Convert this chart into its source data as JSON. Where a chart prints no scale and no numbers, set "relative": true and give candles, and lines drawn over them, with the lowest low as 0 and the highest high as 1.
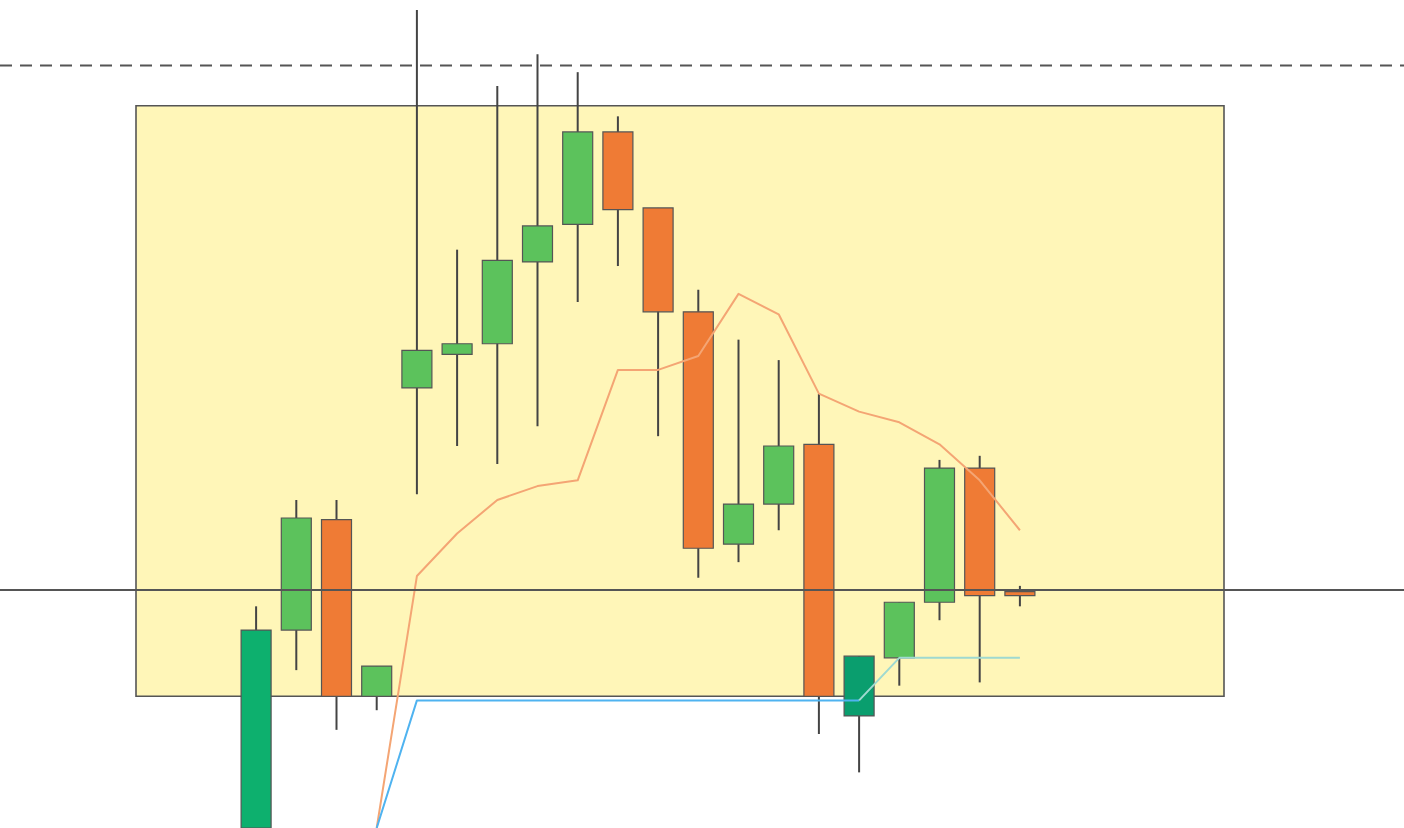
{
  "chart_data": {
    "type": "candlestick",
    "relative": true,
    "categories": [
      null,
      null,
      null,
      null,
      null,
      null,
      null,
      null,
      null,
      null,
      null,
      null,
      null,
      null,
      null,
      null,
      null,
      null,
      null,
      null
    ],
    "ohlc": [
      [
        0,
        0.271,
        0,
        0.242
      ],
      [
        0.242,
        0.401,
        0.193,
        0.379
      ],
      [
        0.377,
        0.401,
        0.12,
        0.161
      ],
      [
        0.161,
        0.198,
        0.144,
        0.198
      ],
      [
        0.538,
        1,
        0.408,
        0.584
      ],
      [
        0.579,
        0.707,
        0.467,
        0.592
      ],
      [
        0.592,
        0.907,
        0.445,
        0.694
      ],
      [
        0.692,
        0.946,
        0.491,
        0.736
      ],
      [
        0.738,
        0.924,
        0.643,
        0.851
      ],
      [
        0.851,
        0.87,
        0.687,
        0.756
      ],
      [
        0.758,
        0.758,
        0.479,
        0.631
      ],
      [
        0.631,
        0.658,
        0.306,
        0.342
      ],
      [
        0.347,
        0.597,
        0.325,
        0.396
      ],
      [
        0.396,
        0.572,
        0.364,
        0.467
      ],
      [
        0.469,
        0.531,
        0.115,
        0.161
      ],
      [
        0.137,
        0.21,
        0.068,
        0.21
      ],
      [
        0.208,
        0.276,
        0.174,
        0.276
      ],
      [
        0.276,
        0.45,
        0.254,
        0.44
      ],
      [
        0.44,
        0.455,
        0.178,
        0.284
      ],
      [
        0.289,
        0.296,
        0.271,
        0.284
      ]
    ],
    "colors": [
      "#0db06e",
      "#5cc25c",
      "#ef7b35",
      "#5cc25c",
      "#5cc25c",
      "#5cc25c",
      "#5cc25c",
      "#5cc25c",
      "#5cc25c",
      "#ef7b35",
      "#ef7b35",
      "#ef7b35",
      "#5cc25c",
      "#5cc25c",
      "#ef7b35",
      "#0a9e6e",
      "#5cc25c",
      "#5cc25c",
      "#ef7b35",
      "#ef7b35"
    ],
    "series": [
      {
        "type": "line",
        "color": "#f4a574",
        "values": [
          null,
          null,
          null,
          0,
          0.308,
          0.36,
          0.401,
          0.418,
          0.425,
          0.56,
          0.56,
          0.577,
          0.653,
          0.628,
          0.531,
          0.509,
          0.496,
          0.469,
          0.425,
          0.364
        ]
      },
      {
        "type": "line",
        "color": "#4fb3f0",
        "values": [
          null,
          null,
          null,
          0,
          0.156,
          0.156,
          0.156,
          0.156,
          0.156,
          0.156,
          0.156,
          0.156,
          0.156,
          0.156,
          0.156,
          0.156,
          null,
          null,
          null,
          null
        ]
      },
      {
        "type": "line",
        "color": "#9fd9d0",
        "values": [
          null,
          null,
          null,
          null,
          null,
          null,
          null,
          null,
          null,
          null,
          null,
          null,
          null,
          null,
          null,
          0.156,
          0.208,
          0.208,
          0.208,
          0.208
        ]
      }
    ],
    "bands": [
      {
        "axis": "y",
        "from": 0.161,
        "to": 0.883,
        "color": "#fff6b8"
      }
    ],
    "ref_lines": [
      {
        "axis": "y",
        "value": 0.932,
        "color": "#555555",
        "line_style": "dashed"
      },
      {
        "axis": "y",
        "value": 0.291,
        "color": "#555555",
        "line_style": "solid"
      }
    ]
  }
}
